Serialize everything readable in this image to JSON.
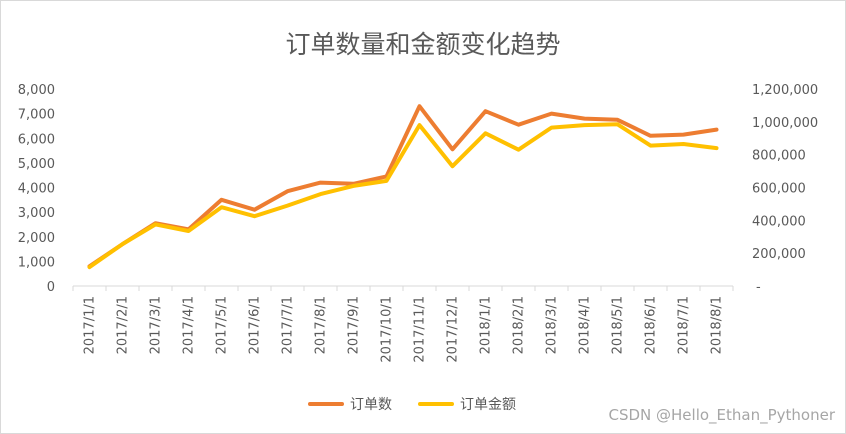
{
  "chart_data": {
    "type": "line",
    "title": "订单数量和金额变化趋势",
    "categories": [
      "2017/1/1",
      "2017/2/1",
      "2017/3/1",
      "2017/4/1",
      "2017/5/1",
      "2017/6/1",
      "2017/7/1",
      "2017/8/1",
      "2017/9/1",
      "2017/10/1",
      "2017/11/1",
      "2017/12/1",
      "2018/1/1",
      "2018/2/1",
      "2018/3/1",
      "2018/4/1",
      "2018/5/1",
      "2018/6/1",
      "2018/7/1",
      "2018/8/1"
    ],
    "series": [
      {
        "name": "订单数",
        "axis": "left",
        "color": "#ED7D31",
        "values": [
          800,
          1700,
          2550,
          2300,
          3500,
          3100,
          3850,
          4200,
          4150,
          4450,
          7300,
          5550,
          7100,
          6550,
          7000,
          6800,
          6750,
          6100,
          6150,
          6350
        ]
      },
      {
        "name": "订单金额",
        "axis": "right",
        "color": "#FFC000",
        "values": [
          115000,
          255000,
          375000,
          335000,
          480000,
          425000,
          490000,
          560000,
          610000,
          640000,
          980000,
          730000,
          930000,
          830000,
          965000,
          980000,
          985000,
          855000,
          865000,
          840000
        ]
      }
    ],
    "y_left": {
      "min": 0,
      "max": 8000,
      "step": 1000,
      "tick_labels": [
        "0",
        "1,000",
        "2,000",
        "3,000",
        "4,000",
        "5,000",
        "6,000",
        "7,000",
        "8,000"
      ]
    },
    "y_right": {
      "min": 0,
      "max": 1200000,
      "step": 200000,
      "tick_labels": [
        "-",
        "200,000",
        "400,000",
        "600,000",
        "800,000",
        "1,000,000",
        "1,200,000"
      ]
    },
    "grid": false,
    "legend": "bottom"
  },
  "watermark": "CSDN @Hello_Ethan_Pythoner"
}
